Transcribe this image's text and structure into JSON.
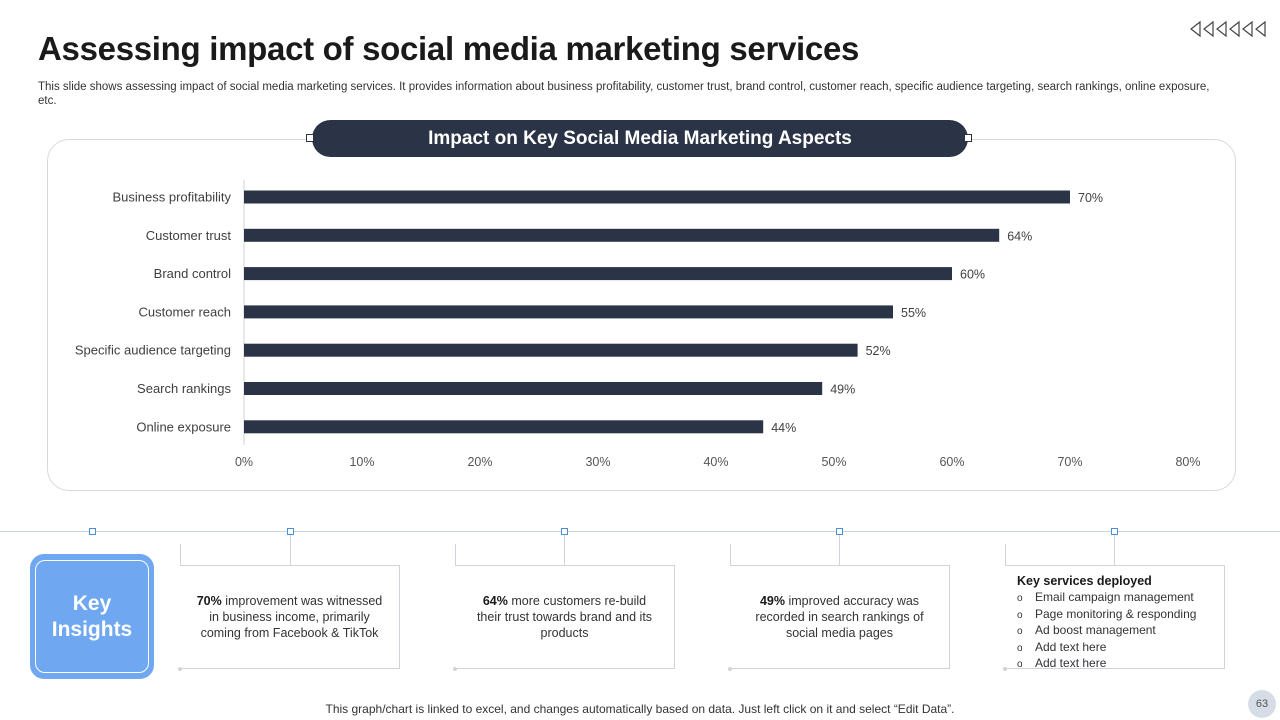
{
  "slide": {
    "title": "Assessing impact of social media marketing services",
    "subtitle": "This slide shows assessing impact of social media marketing services. It provides information about business profitability, customer trust, brand control, customer reach, specific audience targeting, search rankings, online exposure, etc.",
    "page_number": "63",
    "footer": "This graph/chart is linked to excel,  and changes automatically based on data. Just left click on it and select “Edit Data”."
  },
  "chart_banner": "Impact on Key Social Media Marketing Aspects",
  "chart_data": {
    "type": "bar",
    "orientation": "horizontal",
    "title": "Impact on Key Social Media Marketing Aspects",
    "categories": [
      "Business profitability",
      "Customer trust",
      "Brand control",
      "Customer reach",
      "Specific audience targeting",
      "Search rankings",
      "Online exposure"
    ],
    "values": [
      70,
      64,
      60,
      55,
      52,
      49,
      44
    ],
    "value_labels": [
      "70%",
      "64%",
      "60%",
      "55%",
      "52%",
      "49%",
      "44%"
    ],
    "xlim": [
      0,
      80
    ],
    "xticks": [
      0,
      10,
      20,
      30,
      40,
      50,
      60,
      70,
      80
    ],
    "xtick_labels": [
      "0%",
      "10%",
      "20%",
      "30%",
      "40%",
      "50%",
      "60%",
      "70%",
      "80%"
    ],
    "bar_color": "#2b3446",
    "grid": false
  },
  "key_insights": {
    "label_line1": "Key",
    "label_line2": "Insights",
    "color": "#6fa8f0",
    "cards": [
      {
        "bold": "70%",
        "text": " improvement  was witnessed in business income, primarily coming from Facebook & TikTok"
      },
      {
        "bold": "64%",
        "text": " more customers re-build their trust towards brand and its products"
      },
      {
        "bold": "49%",
        "text": " improved  accuracy was recorded  in search rankings of social media pages"
      }
    ],
    "services": {
      "title": "Key services deployed",
      "bullet": "o",
      "items": [
        "Email campaign management",
        "Page monitoring & responding",
        "Ad boost management",
        "Add text here",
        "Add text here"
      ]
    }
  },
  "nav_icon": "rewind-arrows-icon"
}
